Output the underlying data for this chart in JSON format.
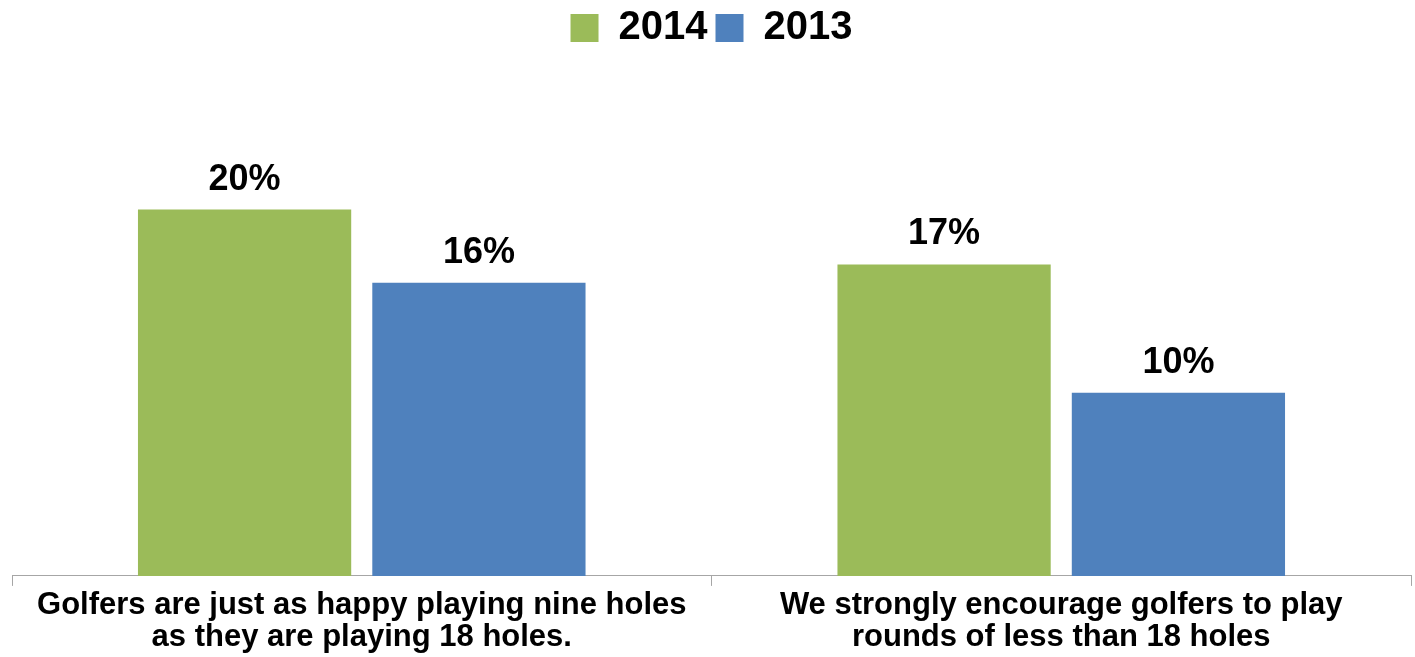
{
  "chart_data": {
    "type": "bar",
    "categories": [
      "Golfers are just as happy playing nine holes as they are playing 18 holes.",
      "We strongly encourage golfers to play rounds of less than 18 holes"
    ],
    "series": [
      {
        "name": "2014",
        "color": "#9bbb59",
        "values": [
          20,
          17
        ],
        "value_labels": [
          "20%",
          "17%"
        ]
      },
      {
        "name": "2013",
        "color": "#4f81bd",
        "values": [
          16,
          10
        ],
        "value_labels": [
          "16%",
          "10%"
        ]
      }
    ],
    "legend": "top",
    "grid": false
  }
}
